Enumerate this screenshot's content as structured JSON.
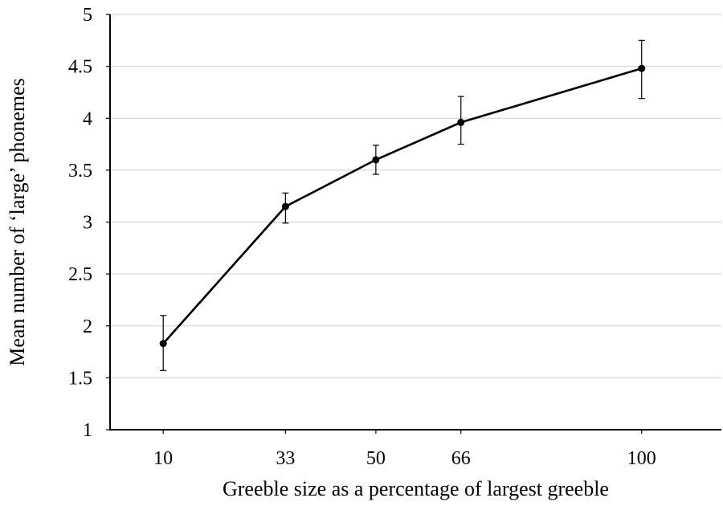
{
  "chart_data": {
    "type": "line",
    "title": "",
    "xlabel": "Greeble size as a percentage of largest greeble",
    "ylabel": "Mean number of ‘large’ phonemes",
    "xlim": [
      0,
      115
    ],
    "ylim": [
      1,
      5
    ],
    "x_ticks": [
      10,
      33,
      50,
      66,
      100
    ],
    "y_ticks": [
      1,
      1.5,
      2,
      2.5,
      3,
      3.5,
      4,
      4.5,
      5
    ],
    "y_tick_labels": [
      "1",
      "1.5",
      "2",
      "2.5",
      "3",
      "3.5",
      "4",
      "4.5",
      "5"
    ],
    "grid": "horizontal",
    "series": [
      {
        "x": [
          10,
          33,
          50,
          66,
          100
        ],
        "values": [
          1.83,
          3.15,
          3.6,
          3.96,
          4.48
        ],
        "err_low": [
          1.57,
          2.99,
          3.46,
          3.75,
          4.19
        ],
        "err_high": [
          2.1,
          3.28,
          3.74,
          4.21,
          4.75
        ],
        "color": "#000000",
        "marker": "circle"
      }
    ]
  }
}
